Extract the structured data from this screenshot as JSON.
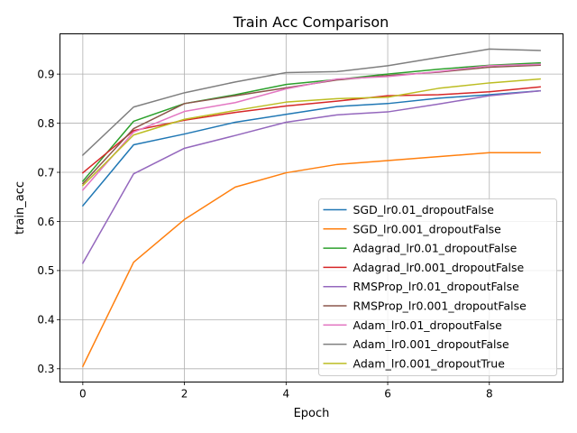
{
  "chart_data": {
    "type": "line",
    "title": "Train Acc Comparison",
    "xlabel": "Epoch",
    "ylabel": "train_acc",
    "xlim": [
      -0.45,
      9.45
    ],
    "ylim": [
      0.273,
      0.982
    ],
    "xticks": [
      0,
      2,
      4,
      6,
      8
    ],
    "yticks": [
      0.3,
      0.4,
      0.5,
      0.6,
      0.7,
      0.8,
      0.9
    ],
    "grid": true,
    "legend_position": "lower-right",
    "x": [
      0,
      1,
      2,
      3,
      4,
      5,
      6,
      7,
      8,
      9
    ],
    "series": [
      {
        "name": "SGD_lr0.01_dropoutFalse",
        "color": "#1f77b4",
        "values": [
          0.632,
          0.756,
          0.778,
          0.802,
          0.818,
          0.834,
          0.84,
          0.851,
          0.858,
          0.866
        ]
      },
      {
        "name": "SGD_lr0.001_dropoutFalse",
        "color": "#ff7f0e",
        "values": [
          0.305,
          0.517,
          0.604,
          0.67,
          0.699,
          0.716,
          0.724,
          0.732,
          0.74,
          0.74
        ]
      },
      {
        "name": "Adagrad_lr0.01_dropoutFalse",
        "color": "#2ca02c",
        "values": [
          0.682,
          0.804,
          0.84,
          0.858,
          0.879,
          0.889,
          0.9,
          0.91,
          0.918,
          0.923
        ]
      },
      {
        "name": "Adagrad_lr0.001_dropoutFalse",
        "color": "#d62728",
        "values": [
          0.699,
          0.785,
          0.806,
          0.822,
          0.835,
          0.845,
          0.856,
          0.858,
          0.864,
          0.874
        ]
      },
      {
        "name": "RMSProp_lr0.01_dropoutFalse",
        "color": "#9467bd",
        "values": [
          0.515,
          0.697,
          0.749,
          0.775,
          0.802,
          0.817,
          0.823,
          0.839,
          0.856,
          0.866
        ]
      },
      {
        "name": "RMSProp_lr0.001_dropoutFalse",
        "color": "#8c564b",
        "values": [
          0.677,
          0.789,
          0.84,
          0.856,
          0.872,
          0.888,
          0.897,
          0.904,
          0.914,
          0.918
        ]
      },
      {
        "name": "Adam_lr0.01_dropoutFalse",
        "color": "#e377c2",
        "values": [
          0.664,
          0.782,
          0.824,
          0.842,
          0.87,
          0.89,
          0.895,
          0.905,
          0.917,
          0.92
        ]
      },
      {
        "name": "Adam_lr0.001_dropoutFalse",
        "color": "#7f7f7f",
        "values": [
          0.735,
          0.833,
          0.862,
          0.884,
          0.903,
          0.905,
          0.917,
          0.934,
          0.951,
          0.948
        ]
      },
      {
        "name": "Adam_lr0.001_dropoutTrue",
        "color": "#bcbd22",
        "values": [
          0.673,
          0.776,
          0.808,
          0.826,
          0.843,
          0.85,
          0.853,
          0.871,
          0.882,
          0.89
        ]
      }
    ]
  }
}
